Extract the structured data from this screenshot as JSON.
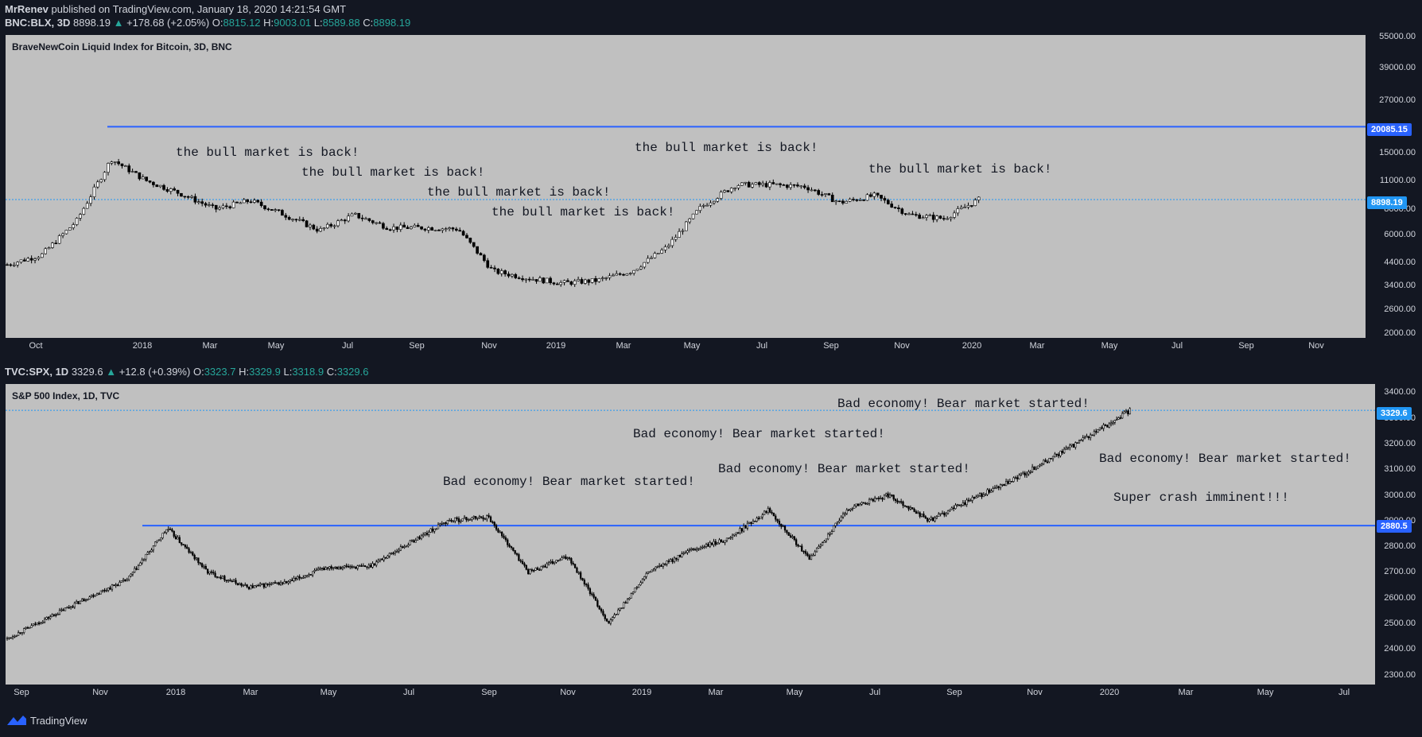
{
  "header": {
    "publisher": "MrRenev",
    "published_text": "published on TradingView.com, January 18, 2020 14:21:54 GMT"
  },
  "top": {
    "symbol_line": {
      "symbol": "BNC:BLX, 3D",
      "last": "8898.19",
      "change": "+178.68 (+2.05%)",
      "o": "8815.12",
      "h": "9003.01",
      "l": "8589.88",
      "c": "8898.19"
    },
    "title": "BraveNewCoin Liquid Index for Bitcoin, 3D, BNC",
    "y_ticks": [
      "55000.00",
      "39000.00",
      "27000.00",
      "15000.00",
      "11000.00",
      "8000.00",
      "6000.00",
      "4400.00",
      "3400.00",
      "2600.00",
      "2000.00"
    ],
    "x_ticks": [
      "Oct",
      "2018",
      "Mar",
      "May",
      "Jul",
      "Sep",
      "Nov",
      "2019",
      "Mar",
      "May",
      "Jul",
      "Sep",
      "Nov",
      "2020",
      "Mar",
      "May",
      "Jul",
      "Sep",
      "Nov"
    ],
    "level_line": "20085.15",
    "last_price": "8898.19",
    "annotations": [
      "the bull market is back!",
      "the bull market is back!",
      "the bull market is back!",
      "the bull market is back!",
      "the bull market is back!",
      "the bull market is back!"
    ]
  },
  "bottom": {
    "symbol_line": {
      "symbol": "TVC:SPX, 1D",
      "last": "3329.6",
      "change": "+12.8 (+0.39%)",
      "o": "3323.7",
      "h": "3329.9",
      "l": "3318.9",
      "c": "3329.6"
    },
    "title": "S&P 500 Index, 1D, TVC",
    "y_ticks": [
      "3400.00",
      "3300.00",
      "3200.00",
      "3100.00",
      "3000.00",
      "2900.00",
      "2800.00",
      "2700.00",
      "2600.00",
      "2500.00",
      "2400.00",
      "2300.00"
    ],
    "x_ticks": [
      "Sep",
      "Nov",
      "2018",
      "Mar",
      "May",
      "Jul",
      "Sep",
      "Nov",
      "2019",
      "Mar",
      "May",
      "Jul",
      "Sep",
      "Nov",
      "2020",
      "Mar",
      "May",
      "Jul"
    ],
    "level_line": "2880.5",
    "last_price": "3329.6",
    "annotations": [
      "Bad economy! Bear market started!",
      "Bad economy! Bear market started!",
      "Bad economy! Bear market started!",
      "Bad economy! Bear market started!",
      "Bad economy! Bear market started!",
      "Super crash imminent!!!"
    ]
  },
  "footer": {
    "brand": "TradingView"
  },
  "colors": {
    "background": "#131722",
    "panel": "#c0c0c0",
    "level": "#2962ff",
    "up": "#26a69a",
    "candle": "#000000"
  },
  "chart_data": [
    {
      "type": "candlestick",
      "title": "BraveNewCoin Liquid Index for Bitcoin, 3D, BNC",
      "yscale": "log",
      "ylim": [
        2000,
        55000
      ],
      "x": [
        "2017-09",
        "2017-10",
        "2017-11",
        "2017-12",
        "2018-01",
        "2018-02",
        "2018-03",
        "2018-04",
        "2018-05",
        "2018-06",
        "2018-07",
        "2018-08",
        "2018-09",
        "2018-10",
        "2018-11",
        "2018-12",
        "2019-01",
        "2019-02",
        "2019-03",
        "2019-04",
        "2019-05",
        "2019-06",
        "2019-07",
        "2019-08",
        "2019-09",
        "2019-10",
        "2019-11",
        "2019-12",
        "2020-01"
      ],
      "close": [
        4300,
        4800,
        7000,
        14000,
        11000,
        9500,
        8000,
        8800,
        7500,
        6300,
        7500,
        6500,
        6500,
        6400,
        4000,
        3700,
        3500,
        3600,
        4000,
        5200,
        8200,
        10500,
        10500,
        10300,
        8600,
        9300,
        7500,
        7200,
        8898.19
      ],
      "horizontal_line": 20085.15,
      "last_price": 8898.19
    },
    {
      "type": "candlestick",
      "title": "S&P 500 Index, 1D, TVC",
      "ylim": [
        2280,
        3420
      ],
      "x": [
        "2017-09",
        "2017-10",
        "2017-11",
        "2017-12",
        "2018-01",
        "2018-02",
        "2018-03",
        "2018-04",
        "2018-05",
        "2018-06",
        "2018-07",
        "2018-08",
        "2018-09",
        "2018-10",
        "2018-11",
        "2018-12",
        "2019-01",
        "2019-02",
        "2019-03",
        "2019-04",
        "2019-05",
        "2019-06",
        "2019-07",
        "2019-08",
        "2019-09",
        "2019-10",
        "2019-11",
        "2019-12",
        "2020-01"
      ],
      "close": [
        2440,
        2520,
        2600,
        2670,
        2870,
        2700,
        2640,
        2660,
        2720,
        2720,
        2810,
        2900,
        2915,
        2700,
        2760,
        2500,
        2700,
        2780,
        2830,
        2945,
        2750,
        2950,
        3000,
        2900,
        2980,
        3050,
        3140,
        3230,
        3329.6
      ],
      "horizontal_line": 2880.5,
      "last_price": 3329.6
    }
  ]
}
